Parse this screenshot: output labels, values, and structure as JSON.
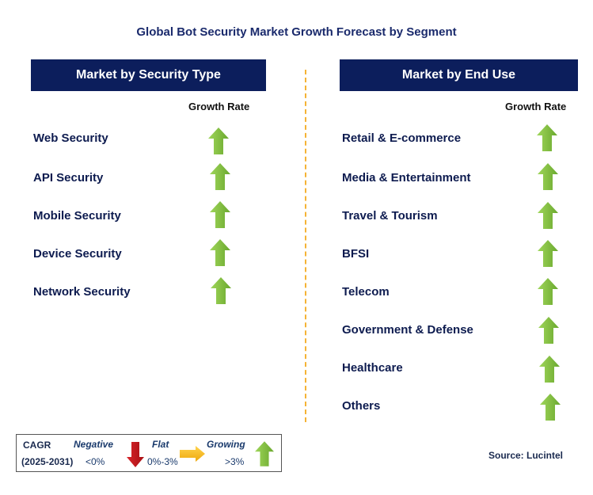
{
  "title": "Global Bot Security Market Growth Forecast by Segment",
  "left_panel": {
    "header": "Market by Security Type",
    "growth_label": "Growth Rate",
    "items": [
      {
        "label": "Web Security",
        "trend": "growing"
      },
      {
        "label": "API Security",
        "trend": "growing"
      },
      {
        "label": "Mobile Security",
        "trend": "growing"
      },
      {
        "label": "Device Security",
        "trend": "growing"
      },
      {
        "label": "Network Security",
        "trend": "growing"
      }
    ]
  },
  "right_panel": {
    "header": "Market by End Use",
    "growth_label": "Growth Rate",
    "items": [
      {
        "label": "Retail & E-commerce",
        "trend": "growing"
      },
      {
        "label": "Media & Entertainment",
        "trend": "growing"
      },
      {
        "label": "Travel & Tourism",
        "trend": "growing"
      },
      {
        "label": "BFSI",
        "trend": "growing"
      },
      {
        "label": "Telecom",
        "trend": "growing"
      },
      {
        "label": "Government & Defense",
        "trend": "growing"
      },
      {
        "label": "Healthcare",
        "trend": "growing"
      },
      {
        "label": "Others",
        "trend": "growing"
      }
    ]
  },
  "legend": {
    "cagr": "CAGR",
    "period": "(2025-2031)",
    "negative_label": "Negative",
    "negative_value": "<0%",
    "flat_label": "Flat",
    "flat_value": "0%-3%",
    "growing_label": "Growing",
    "growing_value": ">3%"
  },
  "source": "Source: Lucintel",
  "colors": {
    "header_bg": "#0c1e5c",
    "growing": "#7ab83a",
    "negative": "#c0141a",
    "flat": "#f2b51c",
    "divider": "#f5b335"
  }
}
